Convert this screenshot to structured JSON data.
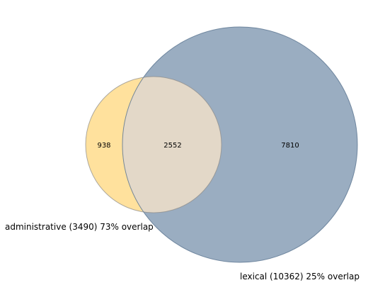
{
  "diagram": {
    "type": "venn2",
    "sets": [
      {
        "key": "administrative",
        "label": "administrative (3490) 73% overlap",
        "size": 3490,
        "color": "#ffc94d",
        "opacity": 0.55
      },
      {
        "key": "lexical",
        "label": "lexical (10362) 25% overlap",
        "size": 10362,
        "color": "#3d6289",
        "opacity": 0.52
      }
    ],
    "regions": {
      "administrative_only": "938",
      "intersection": "2552",
      "lexical_only": "7810"
    },
    "intersection_color": "#e3d8c8"
  }
}
